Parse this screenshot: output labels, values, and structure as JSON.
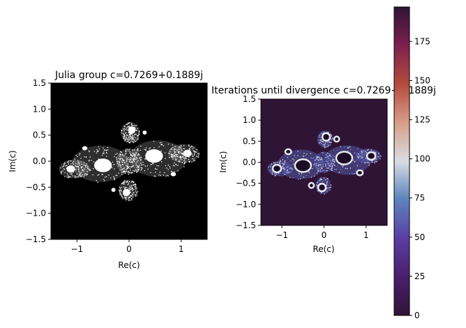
{
  "chart_data": [
    {
      "type": "heatmap",
      "title": "Julia group c=0.7269+0.1889j",
      "xlabel": "Re(c)",
      "ylabel": "Im(c)",
      "xlim": [
        -1.5,
        1.5
      ],
      "ylim": [
        -1.5,
        1.5
      ],
      "xticks": [
        -1,
        0,
        1
      ],
      "yticks": [
        -1.5,
        -1.0,
        -0.5,
        0.0,
        0.5,
        1.0,
        1.5
      ],
      "colormap": "binary (black background, white set)",
      "colors": {
        "background": "#000000",
        "set": "#ffffff"
      },
      "grid": false
    },
    {
      "type": "heatmap",
      "title": "Iterations until divergence c=0.7269+0.1889j",
      "xlabel": "Re(c)",
      "ylabel": "Im(c)",
      "xlim": [
        -1.5,
        1.5
      ],
      "ylim": [
        -1.5,
        1.5
      ],
      "xticks": [
        -1,
        0,
        1
      ],
      "yticks": [
        -1.5,
        -1.0,
        -0.5,
        0.0,
        0.5,
        1.0,
        1.5
      ],
      "colormap": "twilight_shifted",
      "colorbar": {
        "range": [
          0,
          197
        ],
        "ticks": [
          0,
          25,
          50,
          75,
          100,
          125,
          150,
          175
        ],
        "colors": [
          "#2f1436",
          "#5a2a86",
          "#5e7fbd",
          "#a7c4d8",
          "#e8e3e3",
          "#d9a08a",
          "#b0493c",
          "#6b1b4f",
          "#2f1436"
        ]
      },
      "grid": false
    }
  ]
}
